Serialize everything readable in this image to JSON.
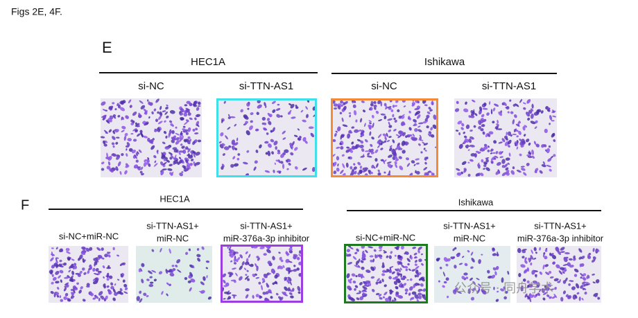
{
  "caption": "Figs 2E, 4F.",
  "panels": [
    {
      "letter": "E",
      "groups": [
        {
          "name": "HEC1A",
          "columns": [
            {
              "label": [
                "si-NC"
              ]
            },
            {
              "label": [
                "si-TTN-AS1"
              ]
            }
          ]
        },
        {
          "name": "Ishikawa",
          "columns": [
            {
              "label": [
                "si-NC"
              ]
            },
            {
              "label": [
                "si-TTN-AS1"
              ]
            }
          ]
        }
      ]
    },
    {
      "letter": "F",
      "groups": [
        {
          "name": "HEC1A",
          "columns": [
            {
              "label": [
                "si-NC+miR-NC"
              ]
            },
            {
              "label": [
                "si-TTN-AS1+",
                "miR-NC"
              ]
            },
            {
              "label": [
                "si-TTN-AS1+",
                "miR-376a-3p inhibitor"
              ]
            }
          ]
        },
        {
          "name": "Ishikawa",
          "columns": [
            {
              "label": [
                "si-NC+miR-NC"
              ]
            },
            {
              "label": [
                "si-TTN-AS1+",
                "miR-NC"
              ]
            },
            {
              "label": [
                "si-TTN-AS1+",
                "miR-376a-3p inhibitor"
              ]
            }
          ]
        }
      ]
    }
  ],
  "watermark": "公众号 · 同舟学术"
}
